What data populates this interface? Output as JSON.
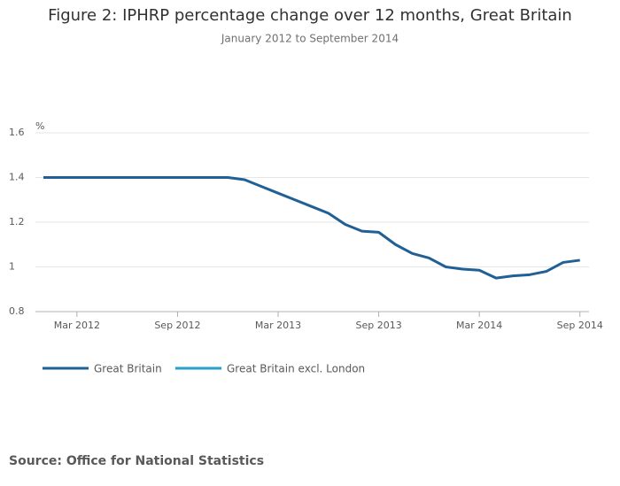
{
  "chart_data": {
    "type": "line",
    "title": "Figure 2: IPHRP percentage change over 12 months, Great Britain",
    "subtitle": "January 2012 to September 2014",
    "y_label": "%",
    "source": "Source: Office for National Statistics",
    "categories": [
      null,
      null,
      "Mar 2012",
      null,
      null,
      null,
      null,
      null,
      "Sep 2012",
      null,
      null,
      null,
      null,
      null,
      "Mar 2013",
      null,
      null,
      null,
      null,
      null,
      "Sep 2013",
      null,
      null,
      null,
      null,
      null,
      "Mar 2014",
      null,
      null,
      null,
      null,
      null,
      "Sep 2014"
    ],
    "series": [
      {
        "name": "Great Britain",
        "color": "#206095",
        "values": [
          1.4,
          1.4,
          1.4,
          1.4,
          1.4,
          1.4,
          1.4,
          1.4,
          1.4,
          1.4,
          1.4,
          1.4,
          1.39,
          1.36,
          1.33,
          1.3,
          1.27,
          1.24,
          1.19,
          1.16,
          1.155,
          1.1,
          1.06,
          1.04,
          1.0,
          0.99,
          0.985,
          0.95,
          0.96,
          0.965,
          0.98,
          1.02,
          1.03
        ]
      },
      {
        "name": "Great Britain excl. London",
        "color": "#27a0cc",
        "values": [
          null,
          null,
          null,
          null,
          null,
          null,
          null,
          null,
          null,
          null,
          null,
          null,
          null,
          null,
          null,
          null,
          null,
          null,
          null,
          null,
          null,
          null,
          null,
          null,
          null,
          null,
          null,
          null,
          null,
          null,
          null,
          null,
          null
        ]
      }
    ],
    "ylim": [
      0.8,
      1.6
    ],
    "yticks": [
      0.8,
      1,
      1.2,
      1.4,
      1.6
    ],
    "grid": true
  }
}
